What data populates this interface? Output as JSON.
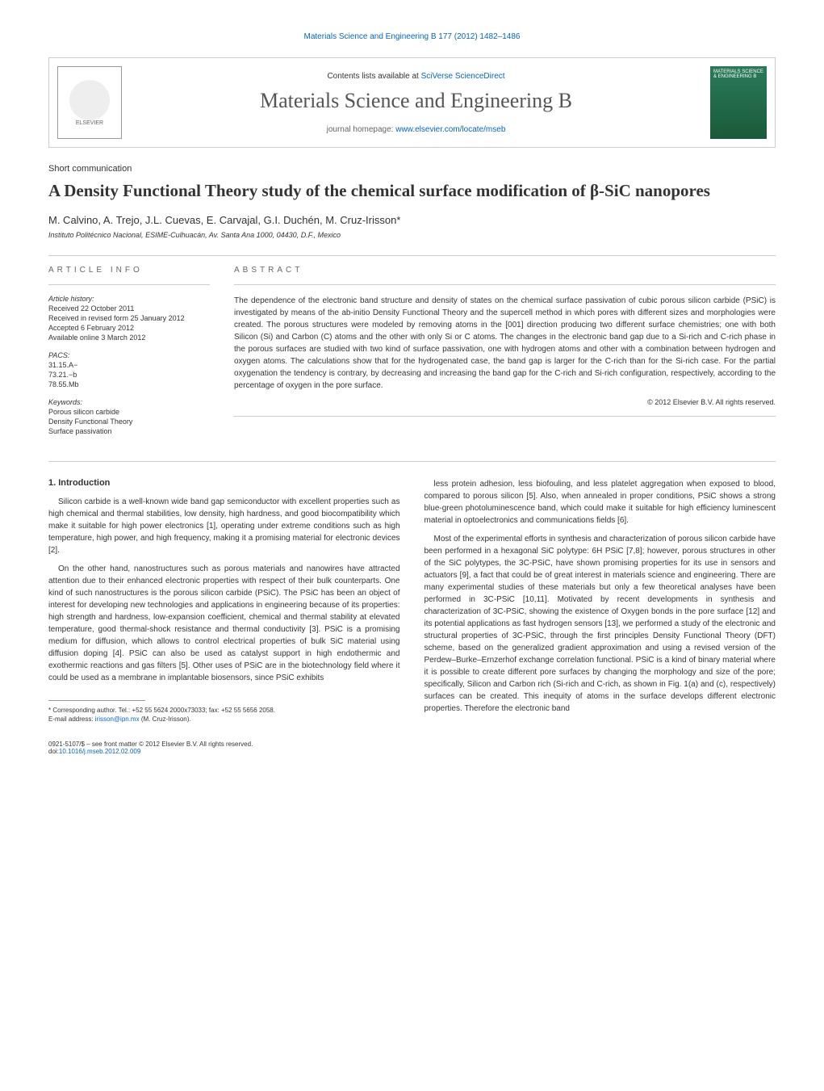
{
  "top_citation": "Materials Science and Engineering B 177 (2012) 1482–1486",
  "header": {
    "contents_prefix": "Contents lists available at ",
    "contents_link": "SciVerse ScienceDirect",
    "journal": "Materials Science and Engineering B",
    "homepage_prefix": "journal homepage: ",
    "homepage_link": "www.elsevier.com/locate/mseb",
    "elsevier_label": "ELSEVIER",
    "cover_text": "MATERIALS SCIENCE & ENGINEERING B"
  },
  "article_type": "Short communication",
  "title": "A Density Functional Theory study of the chemical surface modification of β-SiC nanopores",
  "authors": "M. Calvino, A. Trejo, J.L. Cuevas, E. Carvajal, G.I. Duchén, M. Cruz-Irisson",
  "author_marker": "*",
  "affiliation": "Instituto Politécnico Nacional, ESIME-Culhuacán, Av. Santa Ana 1000, 04430, D.F., Mexico",
  "info": {
    "heading": "ARTICLE INFO",
    "history_label": "Article history:",
    "history": [
      "Received 22 October 2011",
      "Received in revised form 25 January 2012",
      "Accepted 6 February 2012",
      "Available online 3 March 2012"
    ],
    "pacs_label": "PACS:",
    "pacs": [
      "31.15.A−",
      "73.21.−b",
      "78.55.Mb"
    ],
    "keywords_label": "Keywords:",
    "keywords": [
      "Porous silicon carbide",
      "Density Functional Theory",
      "Surface passivation"
    ]
  },
  "abstract": {
    "heading": "ABSTRACT",
    "text": "The dependence of the electronic band structure and density of states on the chemical surface passivation of cubic porous silicon carbide (PSiC) is investigated by means of the ab-initio Density Functional Theory and the supercell method in which pores with different sizes and morphologies were created. The porous structures were modeled by removing atoms in the [001] direction producing two different surface chemistries; one with both Silicon (Si) and Carbon (C) atoms and the other with only Si or C atoms. The changes in the electronic band gap due to a Si-rich and C-rich phase in the porous surfaces are studied with two kind of surface passivation, one with hydrogen atoms and other with a combination between hydrogen and oxygen atoms. The calculations show that for the hydrogenated case, the band gap is larger for the C-rich than for the Si-rich case. For the partial oxygenation the tendency is contrary, by decreasing and increasing the band gap for the C-rich and Si-rich configuration, respectively, according to the percentage of oxygen in the pore surface.",
    "copyright": "© 2012 Elsevier B.V. All rights reserved."
  },
  "body": {
    "intro_heading": "1. Introduction",
    "left_paras": [
      "Silicon carbide is a well-known wide band gap semiconductor with excellent properties such as high chemical and thermal stabilities, low density, high hardness, and good biocompatibility which make it suitable for high power electronics [1], operating under extreme conditions such as high temperature, high power, and high frequency, making it a promising material for electronic devices [2].",
      "On the other hand, nanostructures such as porous materials and nanowires have attracted attention due to their enhanced electronic properties with respect of their bulk counterparts. One kind of such nanostructures is the porous silicon carbide (PSiC). The PSiC has been an object of interest for developing new technologies and applications in engineering because of its properties: high strength and hardness, low-expansion coefficient, chemical and thermal stability at elevated temperature, good thermal-shock resistance and thermal conductivity [3]. PSiC is a promising medium for diffusion, which allows to control electrical properties of bulk SiC material using diffusion doping [4]. PSiC can also be used as catalyst support in high endothermic and exothermic reactions and gas filters [5]. Other uses of PSiC are in the biotechnology field where it could be used as a membrane in implantable biosensors, since PSiC exhibits"
    ],
    "right_paras": [
      "less protein adhesion, less biofouling, and less platelet aggregation when exposed to blood, compared to porous silicon [5]. Also, when annealed in proper conditions, PSiC shows a strong blue-green photoluminescence band, which could make it suitable for high efficiency luminescent material in optoelectronics and communications fields [6].",
      "Most of the experimental efforts in synthesis and characterization of porous silicon carbide have been performed in a hexagonal SiC polytype: 6H PSiC [7,8]; however, porous structures in other of the SiC polytypes, the 3C-PSiC, have shown promising properties for its use in sensors and actuators [9], a fact that could be of great interest in materials science and engineering. There are many experimental studies of these materials but only a few theoretical analyses have been performed in 3C-PSiC [10,11]. Motivated by recent developments in synthesis and characterization of 3C-PSiC, showing the existence of Oxygen bonds in the pore surface [12] and its potential applications as fast hydrogen sensors [13], we performed a study of the electronic and structural properties of 3C-PSiC, through the first principles Density Functional Theory (DFT) scheme, based on the generalized gradient approximation and using a revised version of the Perdew–Burke–Ernzerhof exchange correlation functional. PSiC is a kind of binary material where it is possible to create different pore surfaces by changing the morphology and size of the pore; specifically, Silicon and Carbon rich (Si-rich and C-rich, as shown in Fig. 1(a) and (c), respectively) surfaces can be created. This inequity of atoms in the surface develops different electronic properties. Therefore the electronic band"
    ]
  },
  "footnote": {
    "corresponding": "* Corresponding author. Tel.: +52 55 5624 2000x73033; fax: +52 55 5656 2058.",
    "email_label": "E-mail address: ",
    "email": "irisson@ipn.mx",
    "email_suffix": " (M. Cruz-Irisson)."
  },
  "bottom": {
    "issn": "0921-5107/$ – see front matter © 2012 Elsevier B.V. All rights reserved.",
    "doi_label": "doi:",
    "doi": "10.1016/j.mseb.2012.02.009"
  }
}
